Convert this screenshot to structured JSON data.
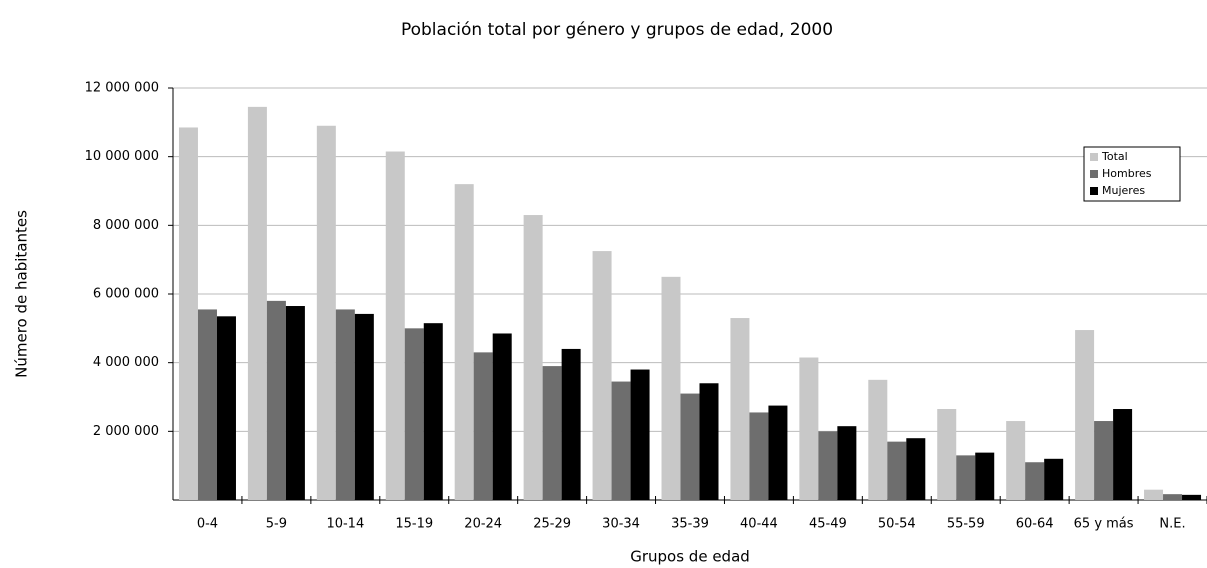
{
  "chart_data": {
    "type": "bar",
    "title": "Población total por género y grupos de edad, 2000",
    "x_label": "Grupos de edad",
    "y_label": "Número de habitantes",
    "categories": [
      "0-4",
      "5-9",
      "10-14",
      "15-19",
      "20-24",
      "25-29",
      "30-34",
      "35-39",
      "40-44",
      "45-49",
      "50-54",
      "55-59",
      "60-64",
      "65 y más",
      "N.E."
    ],
    "series": [
      {
        "name": "Total",
        "color": "#c8c8c8",
        "values": [
          10850000,
          11450000,
          10900000,
          10150000,
          9200000,
          8300000,
          7250000,
          6500000,
          5300000,
          4150000,
          3500000,
          2650000,
          2300000,
          4950000,
          300000
        ]
      },
      {
        "name": "Hombres",
        "color": "#6e6e6e",
        "values": [
          5550000,
          5800000,
          5550000,
          5000000,
          4300000,
          3900000,
          3450000,
          3100000,
          2550000,
          2000000,
          1700000,
          1300000,
          1100000,
          2300000,
          170000
        ]
      },
      {
        "name": "Mujeres",
        "color": "#000000",
        "values": [
          5350000,
          5650000,
          5420000,
          5150000,
          4850000,
          4400000,
          3800000,
          3400000,
          2750000,
          2150000,
          1800000,
          1380000,
          1200000,
          2650000,
          150000
        ]
      }
    ],
    "ylim": [
      0,
      12000000
    ],
    "yticks": [
      {
        "value": 2000000,
        "label": "2 000 000"
      },
      {
        "value": 4000000,
        "label": "4 000 000"
      },
      {
        "value": 6000000,
        "label": "6 000 000"
      },
      {
        "value": 8000000,
        "label": "8 000 000"
      },
      {
        "value": 10000000,
        "label": "10 000 000"
      },
      {
        "value": 12000000,
        "label": "12 000 000"
      }
    ],
    "grid": true,
    "legend": "upper right"
  }
}
